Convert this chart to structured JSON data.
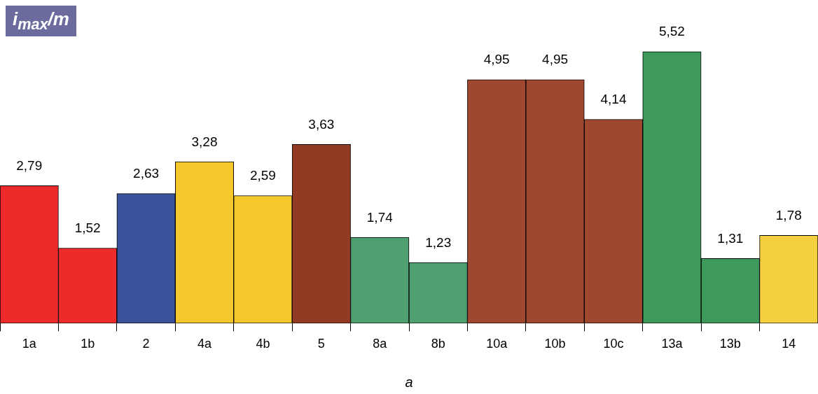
{
  "chart_data": {
    "type": "bar",
    "ylabel": "i$_{max}$/m",
    "xlabel": "a",
    "categories": [
      "1a",
      "1b",
      "2",
      "4a",
      "4b",
      "5",
      "8a",
      "8b",
      "10a",
      "10b",
      "10c",
      "13a",
      "13b",
      "14"
    ],
    "values": [
      2.79,
      1.52,
      2.63,
      3.28,
      2.59,
      3.63,
      1.74,
      1.23,
      4.95,
      4.95,
      4.14,
      5.52,
      1.31,
      1.78
    ],
    "colors": [
      "#ee2b2b",
      "#ee2b2b",
      "#3a539b",
      "#f4c72c",
      "#f4c72c",
      "#933a22",
      "#4fa070",
      "#4fa070",
      "#a0482f",
      "#a0482f",
      "#a0482f",
      "#3d9a5c",
      "#3d9a5c",
      "#f4d040"
    ],
    "value_labels": [
      "2,79",
      "1,52",
      "2,63",
      "3,28",
      "2,59",
      "3,63",
      "1,74",
      "1,23",
      "4,95",
      "4,95",
      "4,14",
      "5,52",
      "1,31",
      "1,78"
    ]
  }
}
